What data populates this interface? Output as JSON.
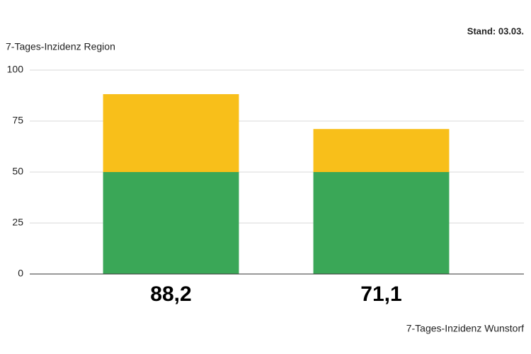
{
  "chart_data": {
    "type": "stacked_bar",
    "annotation": "Stand: 03.03.",
    "y_label": "7-Tages-Inzidenz Region",
    "x_label": "7-Tages-Inzidenz Wunstorf",
    "categories": [
      "88,2",
      "71,1"
    ],
    "series": [
      {
        "color": "#3aa757",
        "values": [
          50,
          50
        ]
      },
      {
        "color": "#f8bf1a",
        "values": [
          38.2,
          21.1
        ]
      }
    ],
    "ylim": [
      0,
      100
    ],
    "yticks": [
      0,
      25,
      50,
      75,
      100
    ],
    "grid": true
  }
}
